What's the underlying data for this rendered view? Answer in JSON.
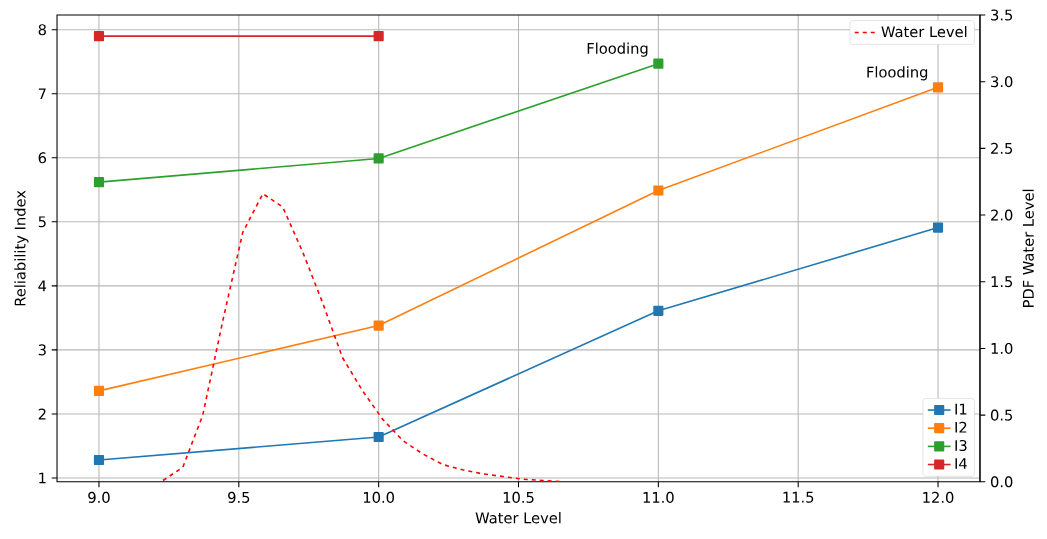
{
  "chart_data": {
    "type": "line",
    "xlabel": "Water Level",
    "ylabel": "Reliability Index",
    "y2label": "PDF Water Level",
    "xlim": [
      8.85,
      12.15
    ],
    "ylim": [
      0.94,
      8.23
    ],
    "y2lim": [
      0,
      3.5
    ],
    "xticks": [
      {
        "value": 9,
        "label": "9.0"
      },
      {
        "value": 9.5,
        "label": "9.5"
      },
      {
        "value": 10,
        "label": "10.0"
      },
      {
        "value": 10.5,
        "label": "10.5"
      },
      {
        "value": 11,
        "label": "11.0"
      },
      {
        "value": 11.5,
        "label": "11.5"
      },
      {
        "value": 12,
        "label": "12.0"
      }
    ],
    "yticks": [
      1,
      2,
      3,
      4,
      5,
      6,
      7,
      8
    ],
    "y2ticks": [
      {
        "value": 0,
        "label": "0.0"
      },
      {
        "value": 0.5,
        "label": "0.5"
      },
      {
        "value": 1,
        "label": "1.0"
      },
      {
        "value": 1.5,
        "label": "1.5"
      },
      {
        "value": 2,
        "label": "2.0"
      },
      {
        "value": 2.5,
        "label": "2.5"
      },
      {
        "value": 3,
        "label": "3.0"
      },
      {
        "value": 3.5,
        "label": "3.5"
      }
    ],
    "grid": true,
    "legend": "right",
    "series": [
      {
        "name": "I1",
        "color": "#1f77b4",
        "marker": "square",
        "line_style": "solid",
        "x": [
          9,
          10,
          11,
          12
        ],
        "values": [
          1.28,
          1.64,
          3.61,
          4.91
        ]
      },
      {
        "name": "I2",
        "color": "#ff7f0e",
        "marker": "square",
        "line_style": "solid",
        "x": [
          9,
          10,
          11,
          12
        ],
        "values": [
          2.36,
          3.38,
          5.49,
          7.1
        ]
      },
      {
        "name": "I3",
        "color": "#2ca02c",
        "marker": "square",
        "line_style": "solid",
        "x": [
          9,
          10,
          11
        ],
        "values": [
          5.62,
          5.99,
          7.47
        ]
      },
      {
        "name": "I4",
        "color": "#d62728",
        "marker": "square",
        "line_style": "solid",
        "x": [
          9,
          10
        ],
        "values": [
          7.9,
          7.9
        ]
      },
      {
        "name": "Water Level",
        "color": "#ff0000",
        "marker": "none",
        "line_style": "dashed",
        "axis": "y2",
        "x": [
          9.229,
          9.3,
          9.371,
          9.443,
          9.514,
          9.586,
          9.657,
          9.729,
          9.8,
          9.871,
          9.943,
          10.014,
          10.086,
          10.157,
          10.229,
          10.3,
          10.371,
          10.443,
          10.514,
          10.586,
          10.657
        ],
        "values": [
          0.01,
          0.11,
          0.5,
          1.21,
          1.87,
          2.16,
          2.06,
          1.72,
          1.34,
          0.93,
          0.68,
          0.47,
          0.31,
          0.21,
          0.13,
          0.09,
          0.06,
          0.04,
          0.02,
          0.01,
          0.0
        ]
      }
    ],
    "annotations": [
      {
        "text": "Flooding",
        "x": 11,
        "y": 7.47
      },
      {
        "text": "Flooding",
        "x": 12,
        "y": 7.1
      }
    ]
  }
}
